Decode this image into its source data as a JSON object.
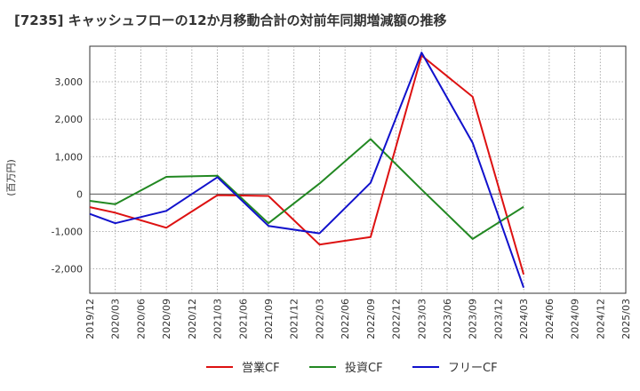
{
  "chart_data": {
    "type": "line",
    "title": "[7235]  キャッシュフローの12か月移動合計の対前年同期増減額の推移",
    "ylabel": "(百万円)",
    "xlabel": "",
    "x": [
      "2019/12",
      "2020/03",
      "2020/06",
      "2020/09",
      "2020/12",
      "2021/03",
      "2021/06",
      "2021/09",
      "2021/12",
      "2022/03",
      "2022/06",
      "2022/09",
      "2022/12",
      "2023/03",
      "2023/06",
      "2023/09",
      "2023/12",
      "2024/03",
      "2024/06",
      "2024/09",
      "2024/12",
      "2025/03"
    ],
    "ylim": [
      -2650,
      3950
    ],
    "yticks": [
      -2000,
      -1000,
      0,
      1000,
      2000,
      3000
    ],
    "ytick_labels": [
      "-2,000",
      "-1,000",
      "0",
      "1,000",
      "2,000",
      "3,000"
    ],
    "grid": true,
    "legend_position": "bottom",
    "series": [
      {
        "name": "営業CF",
        "color": "#dd1111",
        "values": [
          -350,
          -500,
          null,
          -900,
          null,
          -30,
          null,
          -50,
          null,
          -1350,
          null,
          -1150,
          null,
          3700,
          null,
          2600,
          null,
          -2150,
          null,
          null,
          null,
          null
        ]
      },
      {
        "name": "投資CF",
        "color": "#228822",
        "values": [
          -180,
          -270,
          null,
          460,
          null,
          490,
          null,
          -780,
          null,
          280,
          null,
          1470,
          null,
          120,
          null,
          -1200,
          null,
          -340,
          null,
          null,
          null,
          null
        ]
      },
      {
        "name": "フリーCF",
        "color": "#1111cc",
        "values": [
          -530,
          -780,
          null,
          -450,
          null,
          450,
          null,
          -850,
          null,
          -1050,
          null,
          300,
          null,
          3780,
          null,
          1370,
          null,
          -2500,
          null,
          null,
          null,
          null
        ]
      }
    ]
  }
}
